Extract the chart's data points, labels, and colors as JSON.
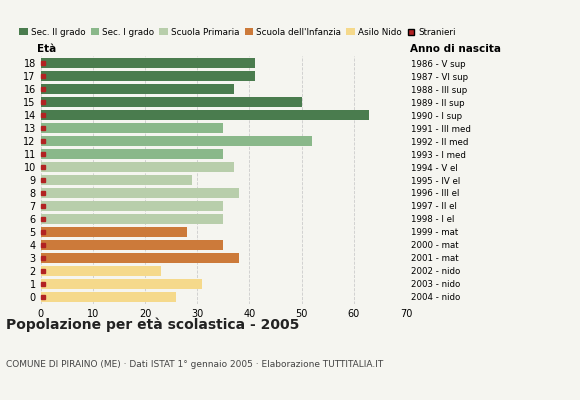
{
  "ages": [
    18,
    17,
    16,
    15,
    14,
    13,
    12,
    11,
    10,
    9,
    8,
    7,
    6,
    5,
    4,
    3,
    2,
    1,
    0
  ],
  "values": [
    41,
    41,
    37,
    50,
    63,
    35,
    52,
    35,
    37,
    29,
    38,
    35,
    35,
    28,
    35,
    38,
    23,
    31,
    26
  ],
  "right_labels": [
    "1986 - V sup",
    "1987 - VI sup",
    "1988 - III sup",
    "1989 - II sup",
    "1990 - I sup",
    "1991 - III med",
    "1992 - II med",
    "1993 - I med",
    "1994 - V el",
    "1995 - IV el",
    "1996 - III el",
    "1997 - II el",
    "1998 - I el",
    "1999 - mat",
    "2000 - mat",
    "2001 - mat",
    "2002 - nido",
    "2003 - nido",
    "2004 - nido"
  ],
  "bar_colors": [
    "#4a7c4e",
    "#4a7c4e",
    "#4a7c4e",
    "#4a7c4e",
    "#4a7c4e",
    "#8ab88a",
    "#8ab88a",
    "#8ab88a",
    "#b8ceab",
    "#b8ceab",
    "#b8ceab",
    "#b8ceab",
    "#b8ceab",
    "#cc7a3a",
    "#cc7a3a",
    "#cc7a3a",
    "#f5d98b",
    "#f5d98b",
    "#f5d98b"
  ],
  "legend_colors": [
    "#4a7c4e",
    "#8ab88a",
    "#b8ceab",
    "#cc7a3a",
    "#f5d98b",
    "#b22222"
  ],
  "legend_labels": [
    "Sec. II grado",
    "Sec. I grado",
    "Scuola Primaria",
    "Scuola dell'Infanzia",
    "Asilo Nido",
    "Stranieri"
  ],
  "title": "Popolazione per età scolastica - 2005",
  "subtitle": "COMUNE DI PIRAINO (ME) · Dati ISTAT 1° gennaio 2005 · Elaborazione TUTTITALIA.IT",
  "xlabel_left": "Età",
  "xlabel_right": "Anno di nascita",
  "xlim": [
    0,
    70
  ],
  "xticks": [
    0,
    10,
    20,
    30,
    40,
    50,
    60,
    70
  ],
  "background_color": "#f5f5f0",
  "grid_color": "#cccccc",
  "stranieri_color": "#b22222"
}
